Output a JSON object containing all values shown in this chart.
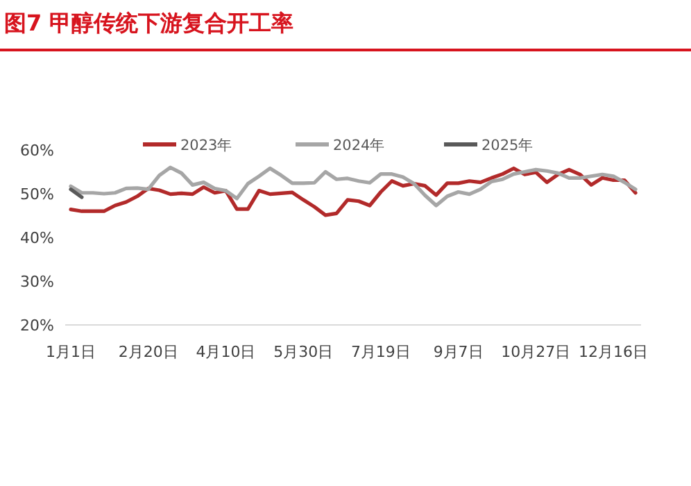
{
  "chart_data": {
    "type": "line",
    "title": "图7  甲醇传统下游复合开工率",
    "categories": [
      "1月1日",
      null,
      null,
      null,
      null,
      null,
      null,
      "2月20日",
      null,
      null,
      null,
      null,
      null,
      null,
      "4月10日",
      null,
      null,
      null,
      null,
      null,
      null,
      "5月30日",
      null,
      null,
      null,
      null,
      null,
      null,
      "7月19日",
      null,
      null,
      null,
      null,
      null,
      null,
      "9月7日",
      null,
      null,
      null,
      null,
      null,
      null,
      "10月27日",
      null,
      null,
      null,
      null,
      null,
      null,
      "12月16日",
      null,
      null
    ],
    "series": [
      {
        "name": "2023年",
        "color": "#b22a2a",
        "values": [
          46.4,
          46.0,
          46.0,
          46.0,
          47.3,
          48.1,
          49.4,
          51.2,
          50.8,
          49.9,
          50.1,
          49.9,
          51.5,
          50.2,
          50.7,
          46.5,
          46.5,
          50.7,
          49.9,
          50.1,
          50.3,
          48.6,
          47.0,
          45.1,
          45.5,
          48.6,
          48.3,
          47.3,
          50.4,
          52.9,
          51.8,
          52.3,
          51.8,
          49.7,
          52.4,
          52.4,
          52.9,
          52.6,
          53.6,
          54.5,
          55.8,
          54.4,
          54.9,
          52.6,
          54.4,
          55.5,
          54.4,
          52.0,
          53.6,
          53.1,
          53.1,
          50.2
        ]
      },
      {
        "name": "2024年",
        "color": "#a6a6a6",
        "values": [
          51.7,
          50.2,
          50.2,
          50.0,
          50.2,
          51.2,
          51.3,
          51.0,
          54.2,
          56.0,
          54.7,
          52.0,
          52.6,
          51.2,
          50.7,
          48.9,
          52.3,
          54.0,
          55.8,
          54.2,
          52.4,
          52.4,
          52.5,
          55.0,
          53.3,
          53.5,
          52.9,
          52.5,
          54.5,
          54.5,
          53.8,
          52.3,
          49.6,
          47.3,
          49.4,
          50.4,
          49.9,
          51.0,
          52.8,
          53.3,
          54.5,
          55.0,
          55.5,
          55.2,
          54.7,
          53.6,
          53.6,
          54.0,
          54.4,
          54.0,
          52.6,
          51.0
        ]
      },
      {
        "name": "2025年",
        "color": "#595959",
        "values": [
          51.0,
          49.2,
          null,
          null,
          null,
          null,
          null,
          null,
          null,
          null,
          null,
          null,
          null,
          null,
          null,
          null,
          null,
          null,
          null,
          null,
          null,
          null,
          null,
          null,
          null,
          null,
          null,
          null,
          null,
          null,
          null,
          null,
          null,
          null,
          null,
          null,
          null,
          null,
          null,
          null,
          null,
          null,
          null,
          null,
          null,
          null,
          null,
          null,
          null,
          null,
          null,
          null
        ]
      }
    ],
    "ylim": [
      20,
      60
    ],
    "yticks": [
      {
        "value": 20,
        "label": "20%"
      },
      {
        "value": 30,
        "label": "30%"
      },
      {
        "value": 40,
        "label": "40%"
      },
      {
        "value": 50,
        "label": "50%"
      },
      {
        "value": 60,
        "label": "60%"
      }
    ],
    "legend": "top",
    "grid": false,
    "marker": "none",
    "line_style": "solid"
  }
}
